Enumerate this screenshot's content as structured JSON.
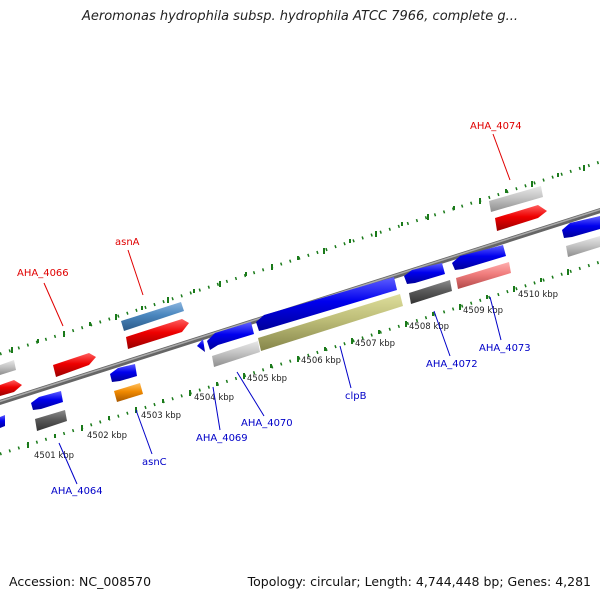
{
  "title": "Aeromonas hydrophila subsp. hydrophila ATCC 7966, complete g...",
  "footer": {
    "accession": "Accession: NC_008570",
    "summary": "Topology: circular; Length: 4,744,448 bp; Genes: 4,281"
  },
  "colors": {
    "forward_label": "#e00000",
    "reverse_label": "#0000c8",
    "tick": "#1a7a1a",
    "backbone": "#7a7a7a"
  },
  "ticks": [
    "4501 kbp",
    "4502 kbp",
    "4503 kbp",
    "4504 kbp",
    "4505 kbp",
    "4506 kbp",
    "4507 kbp",
    "4508 kbp",
    "4509 kbp",
    "4510 kbp"
  ],
  "labels": {
    "AHA_4066": "AHA_4066",
    "asnA": "asnA",
    "AHA_4074": "AHA_4074",
    "AHA_4064": "AHA_4064",
    "asnC": "asnC",
    "AHA_4069": "AHA_4069",
    "AHA_4070": "AHA_4070",
    "clpB": "clpB",
    "AHA_4072": "AHA_4072",
    "AHA_4073": "AHA_4073"
  }
}
